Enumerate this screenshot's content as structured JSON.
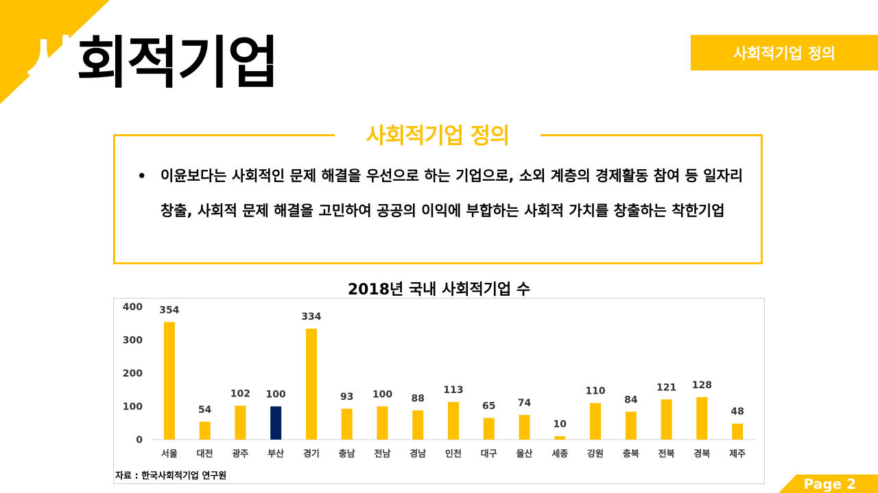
{
  "header": {
    "title_first": "사",
    "title_rest": "회적기업",
    "badge": "사회적기업 정의"
  },
  "definition": {
    "title": "사회적기업 정의",
    "bullet": "•",
    "text": "이윤보다는 사회적인 문제 해결을 우선으로 하는 기업으로, 소외 계층의 경제활동 참여 등 일자리 창출, 사회적 문제 해결을 고민하여 공공의 이익에 부합하는 사회적 가치를 창출하는 착한기업"
  },
  "chart_title": "2018년 국내 사회적기업 수",
  "source": "자료 : 한국사회적기업 연구원",
  "page": "Page 2",
  "colors": {
    "accent": "#FFC000",
    "highlight": "#002060"
  },
  "chart_data": {
    "type": "bar",
    "title": "2018년 국내 사회적기업 수",
    "categories": [
      "서울",
      "대전",
      "광주",
      "부산",
      "경기",
      "충남",
      "전남",
      "경남",
      "인천",
      "대구",
      "울산",
      "세종",
      "강원",
      "충북",
      "전북",
      "경북",
      "제주"
    ],
    "values": [
      354,
      54,
      102,
      100,
      334,
      93,
      100,
      88,
      113,
      65,
      74,
      10,
      110,
      84,
      121,
      128,
      48
    ],
    "highlight_category": "부산",
    "ylim": [
      0,
      400
    ],
    "yticks": [
      0,
      100,
      200,
      300,
      400
    ],
    "grid": false,
    "data_labels": true,
    "xlabel": "",
    "ylabel": ""
  }
}
